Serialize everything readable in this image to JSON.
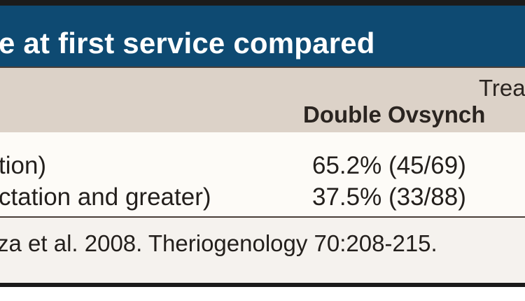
{
  "table": {
    "title": "e at first service compared",
    "header": {
      "group_label": "Trea",
      "column_label": "Double Ovsynch"
    },
    "rows": [
      {
        "label": "tion)",
        "value": "65.2% (45/69)"
      },
      {
        "label": "ctation and greater)",
        "value": "37.5% (33/88)"
      }
    ],
    "footnote": "za et al. 2008. Theriogenology 70:208-215."
  },
  "colors": {
    "title_bar": "#0e4a72",
    "header_band": "#dcd2c8",
    "body_band": "#fdfbf7"
  }
}
